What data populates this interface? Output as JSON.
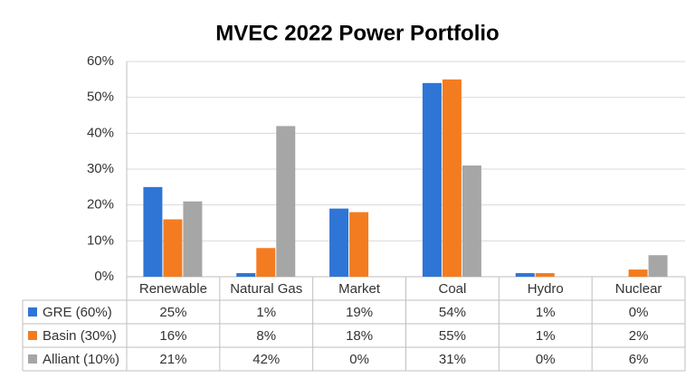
{
  "chart_data": {
    "type": "bar",
    "title": "MVEC 2022 Power Portfolio",
    "categories": [
      "Renewable",
      "Natural Gas",
      "Market",
      "Coal",
      "Hydro",
      "Nuclear"
    ],
    "series": [
      {
        "name": "GRE (60%)",
        "color": "#2e75d6",
        "values": [
          25,
          1,
          19,
          54,
          1,
          0
        ],
        "value_labels": [
          "25%",
          "1%",
          "19%",
          "54%",
          "1%",
          "0%"
        ]
      },
      {
        "name": "Basin (30%)",
        "color": "#f47c20",
        "values": [
          16,
          8,
          18,
          55,
          1,
          2
        ],
        "value_labels": [
          "16%",
          "8%",
          "18%",
          "55%",
          "1%",
          "2%"
        ]
      },
      {
        "name": "Alliant (10%)",
        "color": "#a6a6a6",
        "values": [
          21,
          42,
          0,
          31,
          0,
          6
        ],
        "value_labels": [
          "21%",
          "42%",
          "0%",
          "31%",
          "0%",
          "6%"
        ]
      }
    ],
    "ylim": [
      0,
      60
    ],
    "yticks": [
      {
        "value": 0,
        "label": "0%"
      },
      {
        "value": 10,
        "label": "10%"
      },
      {
        "value": 20,
        "label": "20%"
      },
      {
        "value": 30,
        "label": "30%"
      },
      {
        "value": 40,
        "label": "40%"
      },
      {
        "value": 50,
        "label": "50%"
      },
      {
        "value": 60,
        "label": "60%"
      }
    ],
    "grid": true
  }
}
